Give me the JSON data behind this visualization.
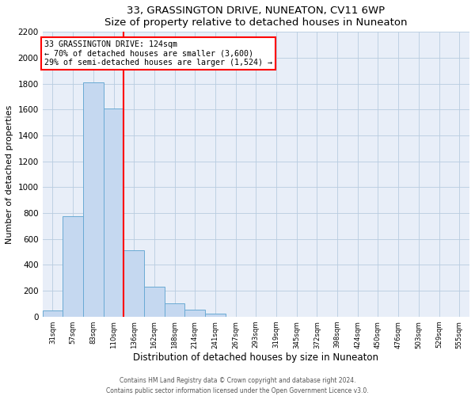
{
  "title": "33, GRASSINGTON DRIVE, NUNEATON, CV11 6WP",
  "subtitle": "Size of property relative to detached houses in Nuneaton",
  "xlabel": "Distribution of detached houses by size in Nuneaton",
  "ylabel": "Number of detached properties",
  "bin_labels": [
    "31sqm",
    "57sqm",
    "83sqm",
    "110sqm",
    "136sqm",
    "162sqm",
    "188sqm",
    "214sqm",
    "241sqm",
    "267sqm",
    "293sqm",
    "319sqm",
    "345sqm",
    "372sqm",
    "398sqm",
    "424sqm",
    "450sqm",
    "476sqm",
    "503sqm",
    "529sqm",
    "555sqm"
  ],
  "bar_values": [
    50,
    775,
    1810,
    1610,
    515,
    230,
    105,
    55,
    20,
    0,
    0,
    0,
    0,
    0,
    0,
    0,
    0,
    0,
    0,
    0,
    0
  ],
  "bar_color": "#c5d8f0",
  "bar_edgecolor": "#6aaad4",
  "vline_x": 3.5,
  "vline_color": "red",
  "annotation_title": "33 GRASSINGTON DRIVE: 124sqm",
  "annotation_line1": "← 70% of detached houses are smaller (3,600)",
  "annotation_line2": "29% of semi-detached houses are larger (1,524) →",
  "annotation_box_edgecolor": "red",
  "ylim": [
    0,
    2200
  ],
  "yticks": [
    0,
    200,
    400,
    600,
    800,
    1000,
    1200,
    1400,
    1600,
    1800,
    2000,
    2200
  ],
  "footer1": "Contains HM Land Registry data © Crown copyright and database right 2024.",
  "footer2": "Contains public sector information licensed under the Open Government Licence v3.0.",
  "plot_bg_color": "#e8eef8",
  "fig_bg_color": "#ffffff"
}
